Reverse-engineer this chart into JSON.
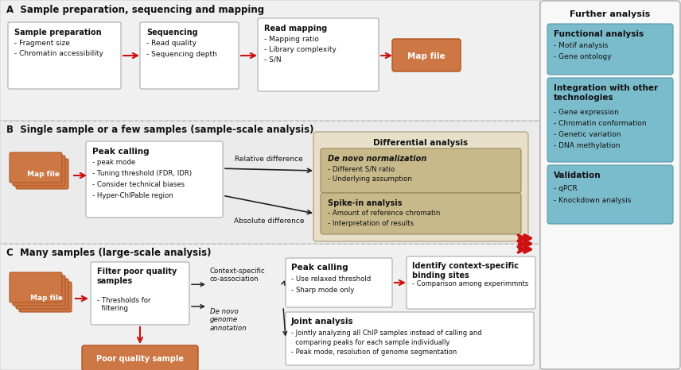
{
  "bg_color": "#f2f2f2",
  "white_box_color": "#ffffff",
  "orange_box_color": "#cc7744",
  "tan_outer_color": "#e8dfc8",
  "tan_inner_color": "#c8b98a",
  "teal_box_color": "#7bbccc",
  "further_bg_color": "#f8f8f8",
  "arrow_red": "#cc1111",
  "arrow_black": "#222222",
  "edge_gray": "#aaaaaa",
  "edge_dark": "#888888",
  "dot_sep": "#bbbbbb",
  "section_a_title": "A  Sample preparation, sequencing and mapping",
  "section_b_title": "B  Single sample or a few samples (sample-scale analysis)",
  "section_c_title": "C  Many samples (large-scale analysis)",
  "further_analysis_title": "Further analysis",
  "functional_title": "Functional analysis",
  "functional_items": [
    "- Motif analysis",
    "- Gene ontology"
  ],
  "integration_title": "Integration with other\ntechnologies",
  "integration_items": [
    "- Gene expression",
    "- Chromatin conformation",
    "- Genetic variation",
    "- DNA methylation"
  ],
  "validation_title": "Validation",
  "validation_items": [
    "- qPCR",
    "- Knockdown analysis"
  ],
  "box_a1_title": "Sample preparation",
  "box_a1_items": [
    "- Fragment size",
    "- Chromatin accessibility"
  ],
  "box_a2_title": "Sequencing",
  "box_a2_items": [
    "- Read quality",
    "- Sequencing depth"
  ],
  "box_a3_title": "Read mapping",
  "box_a3_items": [
    "- Mapping ratio",
    "- Library complexity",
    "- S/N"
  ],
  "map_file_label": "Map file",
  "diff_analysis_title": "Differential analysis",
  "denovo_norm_title": "De novo normalization",
  "denovo_norm_items": [
    "- Different S/N ratio",
    "- Underlying assumption"
  ],
  "spikein_title": "Spike-in analysis",
  "spikein_items": [
    "- Amount of reference chromatin",
    "- Interpretation of results"
  ],
  "peak_calling_b_title": "Peak calling",
  "peak_calling_b_items": [
    "- peak mode",
    "- Tuning threshold (FDR, IDR)",
    "- Consider technical biases",
    "- Hyper-ChIPable region"
  ],
  "relative_diff_label": "Relative difference",
  "absolute_diff_label": "Absolute difference",
  "filter_title": "Filter poor quality\nsamples",
  "filter_item": "- Thresholds for\n  filtering",
  "poor_quality_label": "Poor quality sample",
  "context_specific_label": "Context-specific\nco-association",
  "denovo_genome_label": "De novo\ngenome\nannotation",
  "peak_calling_c_title": "Peak calling",
  "peak_calling_c_items": [
    "- Use relaxed threshold",
    "- Sharp mode only"
  ],
  "identify_title": "Identify context-specific\nbinding sites",
  "identify_items": [
    "- Comparison among experimmnts"
  ],
  "joint_title": "Joint analysis",
  "joint_items": [
    "- Jointly analyzing all ChIP samples instead of calling and",
    "  comparing peaks for each sample individually",
    "- Peak mode, resolution of genome segmentation"
  ]
}
